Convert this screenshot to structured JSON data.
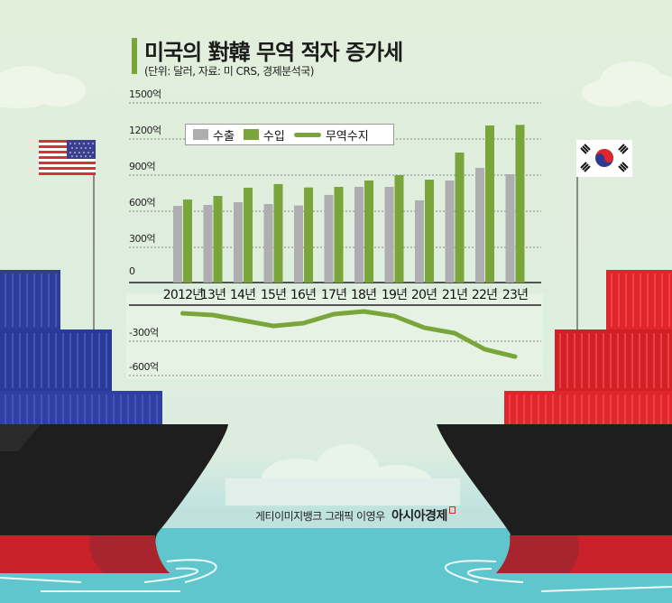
{
  "header": {
    "title": "미국의 對韓 무역 적자 증가세",
    "subtitle": "(단위: 달러, 자료: 미 CRS, 경제분석국)"
  },
  "legend": [
    {
      "label": "수출",
      "type": "bar",
      "color": "#aeaeb0"
    },
    {
      "label": "수입",
      "type": "bar",
      "color": "#7aa53a"
    },
    {
      "label": "무역수지",
      "type": "line",
      "color": "#7aa53a"
    }
  ],
  "yaxis_top": {
    "ticks": [
      "1500억",
      "1200억",
      "900억",
      "600억",
      "300억",
      "0"
    ]
  },
  "yaxis_bottom": {
    "ticks": [
      "-300억",
      "-600억"
    ]
  },
  "xaxis": {
    "ticks": [
      "2012년",
      "13년",
      "14년",
      "15년",
      "16년",
      "17년",
      "18년",
      "19년",
      "20년",
      "21년",
      "22년",
      "23년"
    ]
  },
  "credit": {
    "text": "게티이미지뱅크  그래픽 이영우",
    "brand": "아시아경제"
  },
  "flags": {
    "left": "us-flag",
    "right": "korea-flag"
  },
  "colors": {
    "background": "#e3f0dd",
    "export_bar": "#aeaeb0",
    "import_bar": "#7aa53a",
    "balance_line": "#7aa53a",
    "us_containers": "#2f3f9e",
    "kr_containers": "#e0262c",
    "hull": "#1e1e1e",
    "hull_bottom": "#c82129",
    "water": "#5ec6cc"
  },
  "chart_data": {
    "type": "bar+line",
    "title": "미국의 對韓 무역 적자 증가세",
    "subtitle": "(단위: 달러, 자료: 미 CRS, 경제분석국)",
    "unit": "억 달러",
    "categories": [
      "2012",
      "2013",
      "2014",
      "2015",
      "2016",
      "2017",
      "2018",
      "2019",
      "2020",
      "2021",
      "2022",
      "2023"
    ],
    "category_labels": [
      "2012년",
      "13년",
      "14년",
      "15년",
      "16년",
      "17년",
      "18년",
      "19년",
      "20년",
      "21년",
      "22년",
      "23년"
    ],
    "series": [
      {
        "name": "수출",
        "type": "bar",
        "color": "#aeaeb0",
        "values": [
          637,
          645,
          668,
          652,
          640,
          728,
          795,
          795,
          683,
          848,
          953,
          900
        ]
      },
      {
        "name": "수입",
        "type": "bar",
        "color": "#7aa53a",
        "values": [
          690,
          720,
          788,
          818,
          790,
          795,
          848,
          893,
          855,
          1080,
          1305,
          1310
        ]
      },
      {
        "name": "무역수지",
        "type": "line",
        "color": "#7aa53a",
        "values": [
          -62,
          -77,
          -123,
          -170,
          -146,
          -69,
          -46,
          -85,
          -185,
          -231,
          -369,
          -431
        ]
      }
    ],
    "ylim_bars": [
      0,
      1500
    ],
    "yticks_bars": [
      0,
      300,
      600,
      900,
      1200,
      1500
    ],
    "ylim_line": [
      -600,
      0
    ],
    "yticks_line": [
      -300,
      -600
    ],
    "grid": "dotted horizontal",
    "legend_position": "top-left inside plot"
  }
}
